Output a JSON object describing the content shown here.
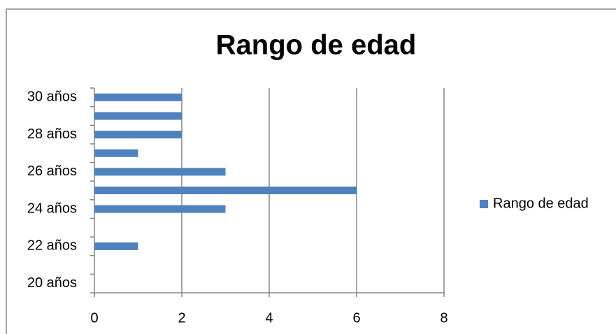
{
  "chart_data": {
    "type": "bar",
    "orientation": "horizontal",
    "title": "Rango de edad",
    "categories": [
      "20 años",
      null,
      "22 años",
      null,
      "24 años",
      null,
      "26 años",
      null,
      "28 años",
      null,
      "30 años"
    ],
    "series": [
      {
        "name": "Rango de edad",
        "color": "#4f81bd",
        "values": [
          0,
          0,
          1,
          0,
          3,
          6,
          3,
          1,
          2,
          2,
          2
        ]
      }
    ],
    "xlim": [
      0,
      8
    ],
    "xticks": [
      0,
      2,
      4,
      6,
      8
    ],
    "grid": true,
    "legend": "right"
  }
}
